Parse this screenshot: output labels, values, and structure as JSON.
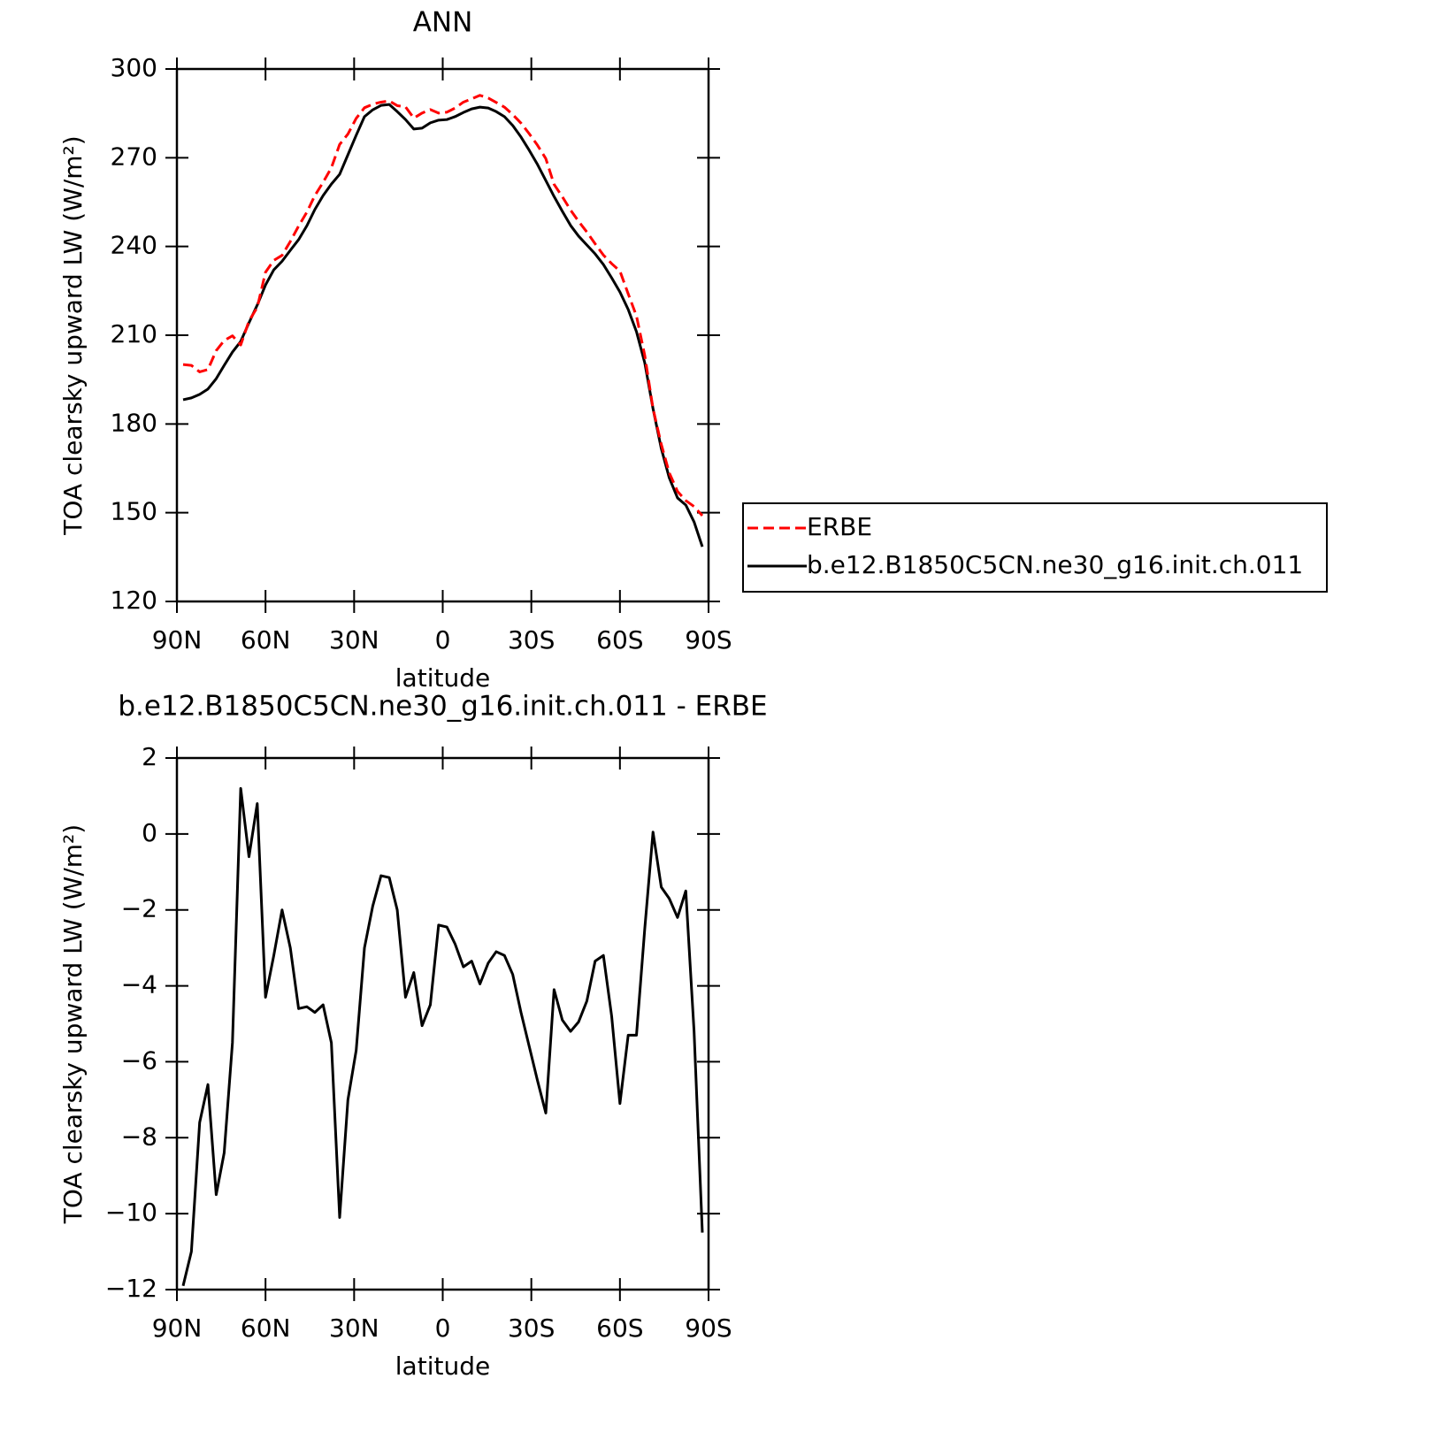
{
  "chart_data": [
    {
      "type": "line",
      "title": "ANN",
      "ylabel": "TOA clearsky upward LW (W/m²)",
      "xlabel": "latitude",
      "x": [
        87.9,
        85.1,
        82.3,
        79.5,
        76.7,
        74.0,
        71.2,
        68.4,
        65.6,
        62.8,
        60.0,
        57.2,
        54.4,
        51.6,
        48.8,
        46.0,
        43.3,
        40.5,
        37.7,
        34.9,
        32.1,
        29.3,
        26.5,
        23.7,
        20.9,
        18.1,
        15.4,
        12.6,
        9.8,
        7.0,
        4.2,
        1.4,
        -1.4,
        -4.2,
        -7.0,
        -9.8,
        -12.6,
        -15.4,
        -18.1,
        -20.9,
        -23.7,
        -26.5,
        -29.3,
        -32.1,
        -34.9,
        -37.7,
        -40.5,
        -43.3,
        -46.0,
        -48.8,
        -51.6,
        -54.4,
        -57.2,
        -60.0,
        -62.8,
        -65.6,
        -68.4,
        -71.2,
        -74.0,
        -76.7,
        -79.5,
        -82.3,
        -85.1,
        -87.9
      ],
      "series": [
        {
          "name": "ERBE",
          "color": "#ff0000",
          "line_style": "dashed",
          "values": [
            200.1,
            199.8,
            197.6,
            198.4,
            204.8,
            208.2,
            209.8,
            206.7,
            214.8,
            219.4,
            231.3,
            235.3,
            237,
            241.7,
            246.9,
            251.6,
            257.2,
            261.7,
            266.6,
            274.5,
            278,
            283.3,
            286.9,
            288.1,
            288.8,
            289.2,
            287.6,
            287.2,
            283.4,
            285.1,
            286.3,
            285.1,
            285.4,
            286.8,
            288.8,
            289.9,
            291.1,
            290.2,
            288.7,
            287.1,
            284.6,
            281.7,
            278.1,
            274.2,
            269.7,
            261,
            256.8,
            252.3,
            248.5,
            244.9,
            240.9,
            237.1,
            234.2,
            231.7,
            224,
            216.5,
            203.2,
            185.2,
            173.1,
            163.5,
            157.2,
            154.1,
            152.1,
            149
          ]
        },
        {
          "name": "b.e12.B1850C5CN.ne30_g16.init.ch.011",
          "color": "#000000",
          "line_style": "solid",
          "values": [
            188.2,
            188.8,
            190,
            191.8,
            195.3,
            199.8,
            204.3,
            207.9,
            214.2,
            220.2,
            227,
            232.1,
            235,
            238.7,
            242.3,
            247,
            252.5,
            257.2,
            261.1,
            264.4,
            271,
            277.6,
            283.9,
            286.2,
            287.7,
            288,
            285.6,
            282.9,
            279.7,
            280,
            281.8,
            282.7,
            282.9,
            283.9,
            285.3,
            286.5,
            287.1,
            286.8,
            285.6,
            283.9,
            280.9,
            277,
            272.5,
            267.7,
            262.3,
            256.9,
            251.9,
            247.1,
            243.5,
            240.5,
            237.5,
            233.9,
            229.4,
            224.6,
            218.7,
            211.2,
            200.7,
            185.2,
            171.7,
            161.8,
            155,
            152.6,
            146.9,
            138.5
          ]
        }
      ],
      "xlim": [
        90,
        -90
      ],
      "xticks": [
        {
          "value": 90,
          "label": "90N"
        },
        {
          "value": 60,
          "label": "60N"
        },
        {
          "value": 30,
          "label": "30N"
        },
        0,
        {
          "value": -30,
          "label": "30S"
        },
        {
          "value": -60,
          "label": "60S"
        },
        {
          "value": -90,
          "label": "90S"
        }
      ],
      "ylim": [
        120,
        300
      ],
      "yticks": [
        120,
        150,
        180,
        210,
        240,
        270,
        300
      ],
      "legend": "right"
    },
    {
      "type": "line",
      "title": "b.e12.B1850C5CN.ne30_g16.init.ch.011 - ERBE",
      "ylabel": "TOA clearsky upward LW (W/m²)",
      "xlabel": "latitude",
      "x": [
        87.9,
        85.1,
        82.3,
        79.5,
        76.7,
        74.0,
        71.2,
        68.4,
        65.6,
        62.8,
        60.0,
        57.2,
        54.4,
        51.6,
        48.8,
        46.0,
        43.3,
        40.5,
        37.7,
        34.9,
        32.1,
        29.3,
        26.5,
        23.7,
        20.9,
        18.1,
        15.4,
        12.6,
        9.8,
        7.0,
        4.2,
        1.4,
        -1.4,
        -4.2,
        -7.0,
        -9.8,
        -12.6,
        -15.4,
        -18.1,
        -20.9,
        -23.7,
        -26.5,
        -29.3,
        -32.1,
        -34.9,
        -37.7,
        -40.5,
        -43.3,
        -46.0,
        -48.8,
        -51.6,
        -54.4,
        -57.2,
        -60.0,
        -62.8,
        -65.6,
        -68.4,
        -71.2,
        -74.0,
        -76.7,
        -79.5,
        -82.3,
        -85.1,
        -87.9
      ],
      "color": "#000000",
      "values": [
        -11.9,
        -11,
        -7.6,
        -6.6,
        -9.5,
        -8.4,
        -5.5,
        1.2,
        -0.6,
        0.8,
        -4.3,
        -3.2,
        -2,
        -3,
        -4.6,
        -4.55,
        -4.7,
        -4.5,
        -5.5,
        -10.1,
        -7,
        -5.7,
        -3,
        -1.9,
        -1.1,
        -1.15,
        -2,
        -4.3,
        -3.65,
        -5.05,
        -4.5,
        -2.4,
        -2.45,
        -2.9,
        -3.5,
        -3.35,
        -3.95,
        -3.4,
        -3.1,
        -3.2,
        -3.7,
        -4.7,
        -5.6,
        -6.5,
        -7.35,
        -4.1,
        -4.9,
        -5.2,
        -4.95,
        -4.4,
        -3.35,
        -3.2,
        -4.8,
        -7.1,
        -5.3,
        -5.3,
        -2.5,
        0.05,
        -1.4,
        -1.7,
        -2.2,
        -1.5,
        -5.2,
        -10.5
      ],
      "xlim": [
        90,
        -90
      ],
      "xticks": [
        {
          "value": 90,
          "label": "90N"
        },
        {
          "value": 60,
          "label": "60N"
        },
        {
          "value": 30,
          "label": "30N"
        },
        0,
        {
          "value": -30,
          "label": "30S"
        },
        {
          "value": -60,
          "label": "60S"
        },
        {
          "value": -90,
          "label": "90S"
        }
      ],
      "ylim": [
        -12,
        2
      ],
      "yticks": [
        {
          "value": -12,
          "label": "−12"
        },
        {
          "value": -10,
          "label": "−10"
        },
        {
          "value": -8,
          "label": "−8"
        },
        {
          "value": -6,
          "label": "−6"
        },
        {
          "value": -4,
          "label": "−4"
        },
        {
          "value": -2,
          "label": "−2"
        },
        0,
        2
      ]
    }
  ]
}
